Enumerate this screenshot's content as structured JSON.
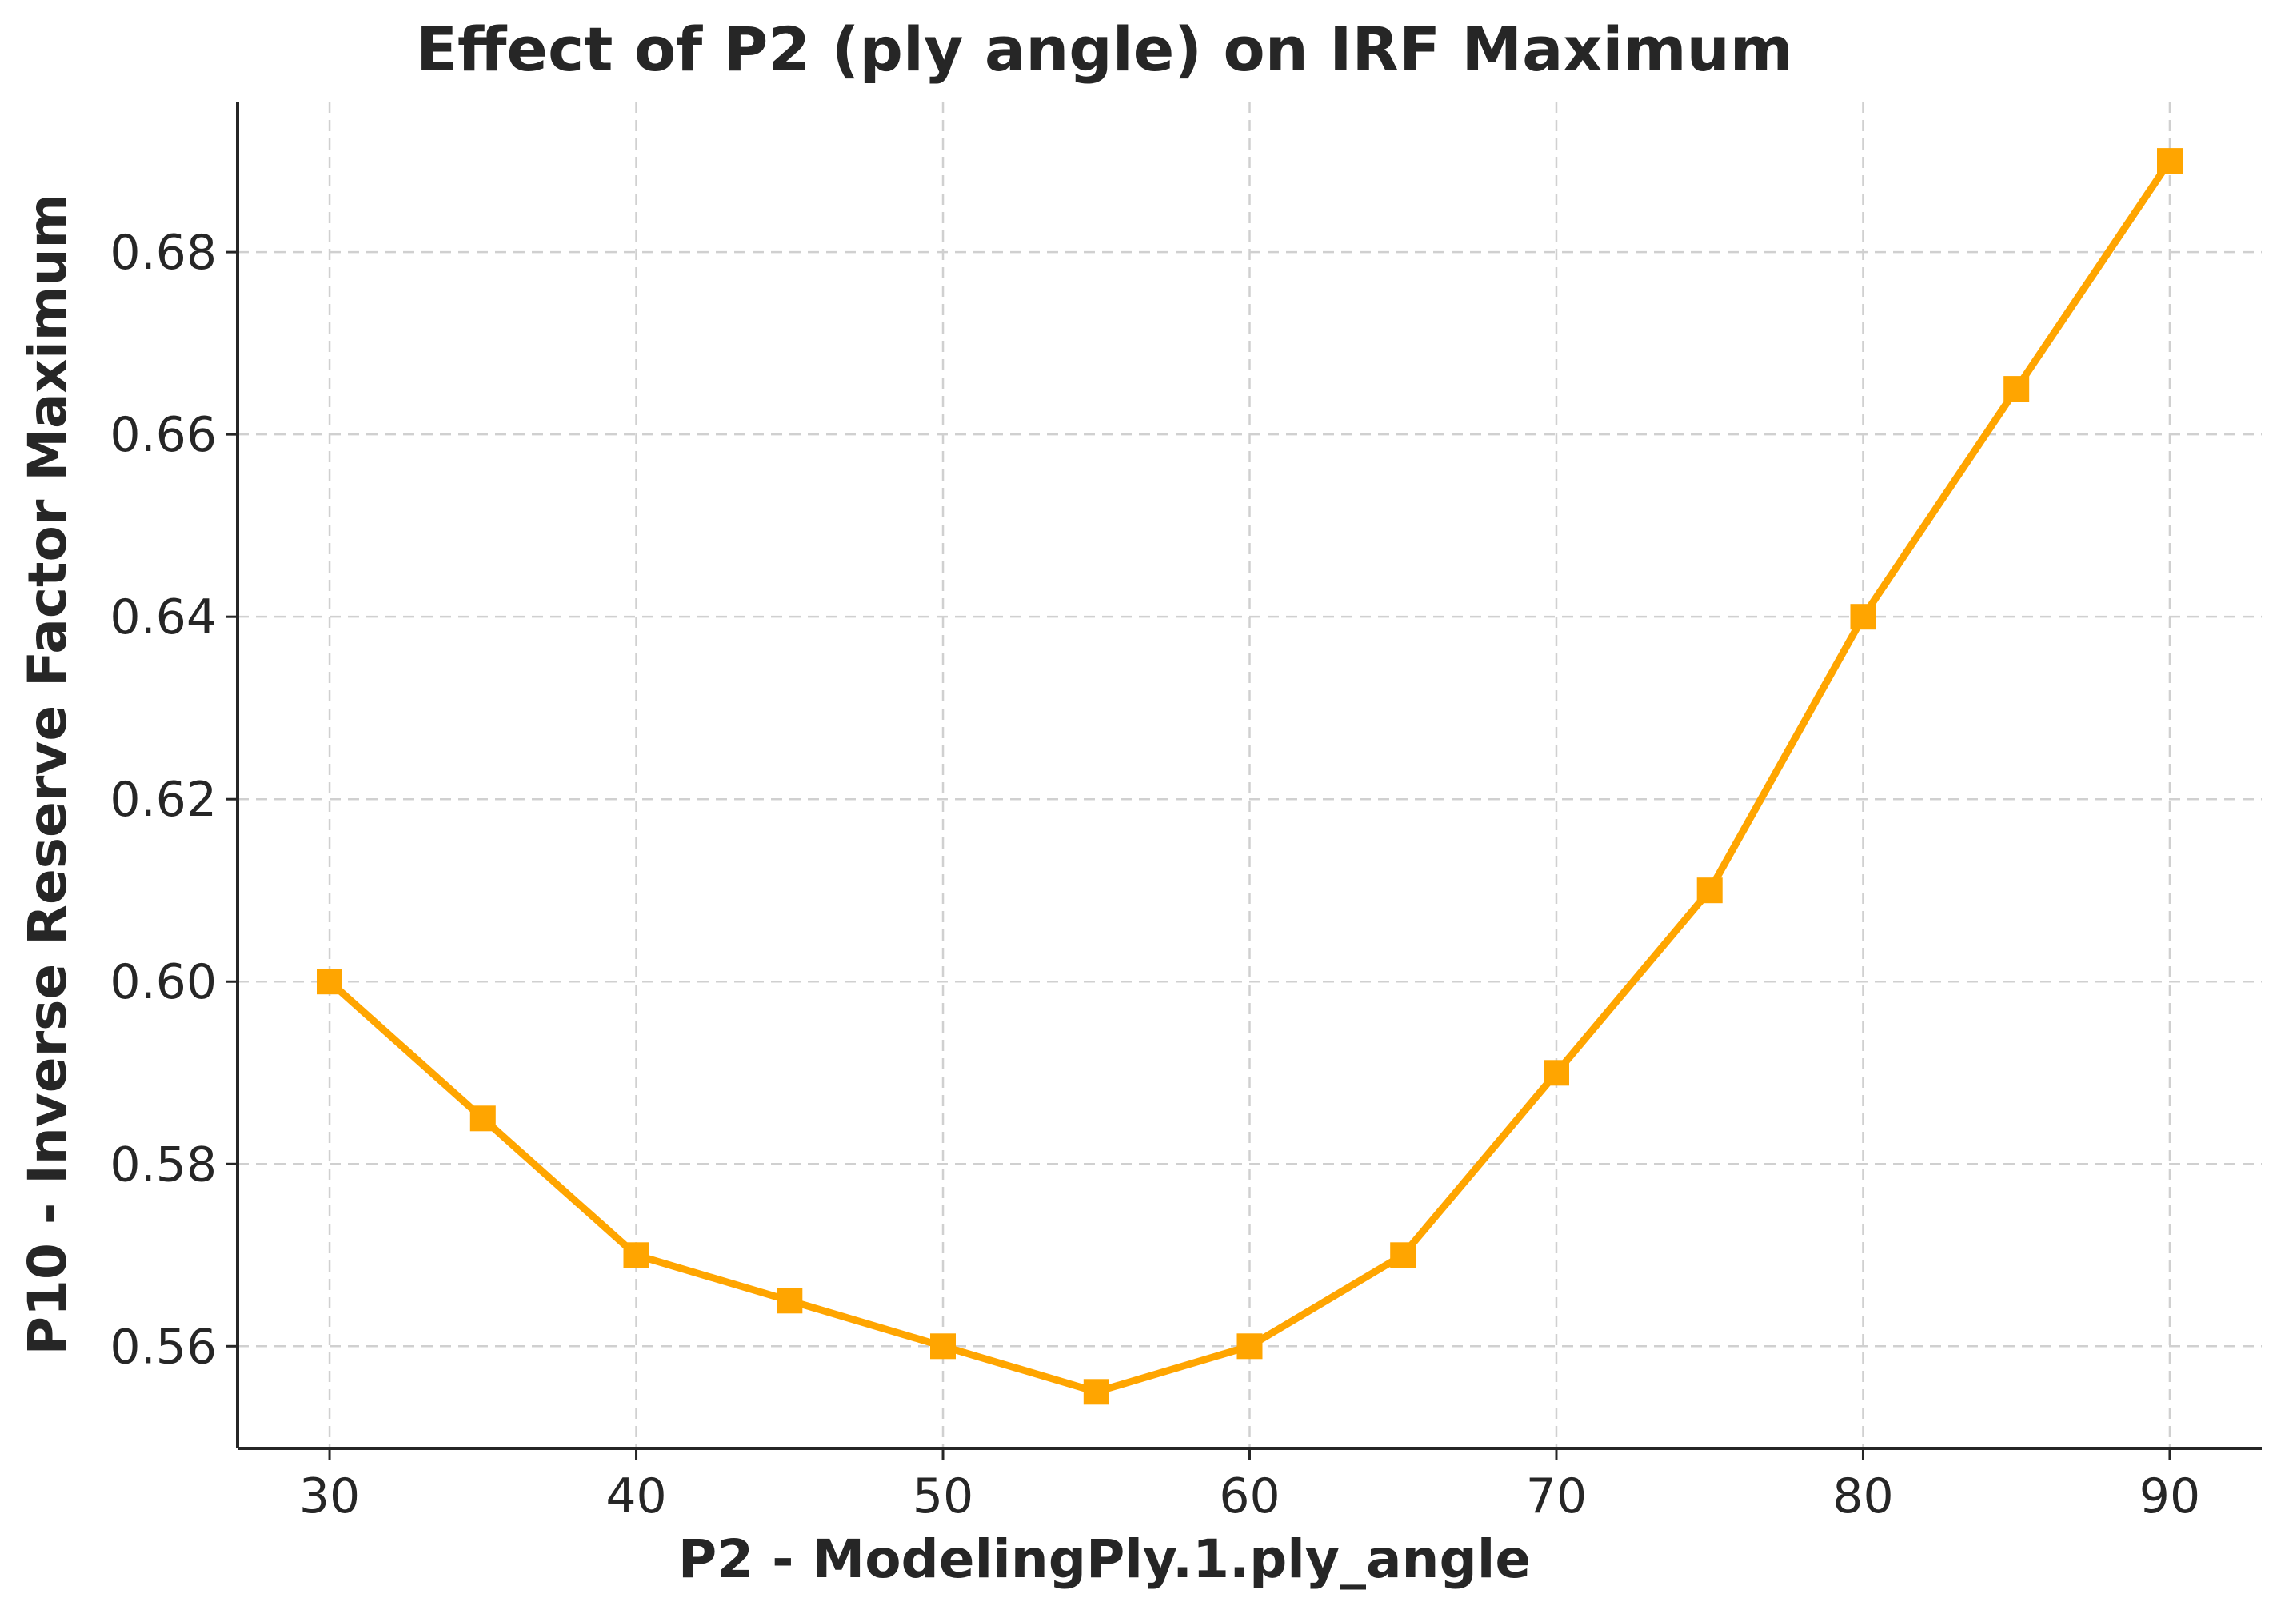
{
  "chart_data": {
    "type": "line",
    "title": "Effect of P2 (ply angle) on IRF Maximum",
    "xlabel": "P2 - ModelingPly.1.ply_angle",
    "ylabel": "P10 - Inverse Reserve Factor Maximum",
    "xlim": [
      27,
      93
    ],
    "ylim": [
      0.5488,
      0.6965
    ],
    "xticks": [
      30,
      40,
      50,
      60,
      70,
      80,
      90
    ],
    "xtick_labels": [
      "30",
      "40",
      "50",
      "60",
      "70",
      "80",
      "90"
    ],
    "yticks": [
      0.56,
      0.58,
      0.6,
      0.62,
      0.64,
      0.66,
      0.68
    ],
    "ytick_labels": [
      "0.56",
      "0.58",
      "0.60",
      "0.62",
      "0.64",
      "0.66",
      "0.68"
    ],
    "grid": true,
    "series": [
      {
        "name": "IRF Maximum",
        "color": "#FFA500",
        "marker": "square",
        "x": [
          30,
          35,
          40,
          45,
          50,
          55,
          60,
          65,
          70,
          75,
          80,
          85,
          90
        ],
        "y": [
          0.6,
          0.585,
          0.57,
          0.565,
          0.56,
          0.555,
          0.56,
          0.57,
          0.59,
          0.61,
          0.64,
          0.665,
          0.69
        ]
      }
    ]
  }
}
